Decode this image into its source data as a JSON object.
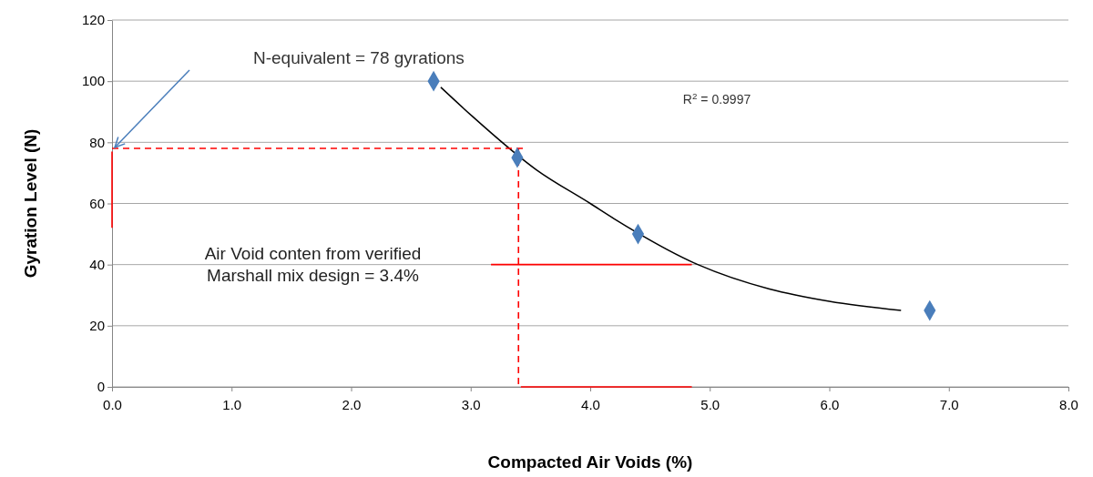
{
  "chart_data": {
    "type": "scatter",
    "xlabel": "Compacted Air Voids (%)",
    "ylabel": "Gyration Level (N)",
    "xlim": [
      0,
      8
    ],
    "xticks": [
      {
        "value": 0,
        "label": "0.0"
      },
      {
        "value": 1,
        "label": "1.0"
      },
      {
        "value": 2,
        "label": "2.0"
      },
      {
        "value": 3,
        "label": "3.0"
      },
      {
        "value": 4,
        "label": "4.0"
      },
      {
        "value": 5,
        "label": "5.0"
      },
      {
        "value": 6,
        "label": "6.0"
      },
      {
        "value": 7,
        "label": "7.0"
      },
      {
        "value": 8,
        "label": "8.0"
      }
    ],
    "ylim": [
      0,
      120
    ],
    "yticks": [
      0,
      20,
      40,
      60,
      80,
      100,
      120
    ],
    "grid": "y",
    "series": [
      {
        "color": "#4a7ebb",
        "marker": "diamond",
        "x": [
          2.69,
          3.39,
          4.4,
          6.84
        ],
        "values": [
          100,
          75,
          50,
          25
        ]
      },
      {
        "type": "line",
        "color": "#000000",
        "marker": "none",
        "line_style": "solid",
        "x": [
          2.75,
          3.0,
          3.55,
          4.0,
          4.2,
          4.9,
          5.5,
          6.0,
          6.6
        ],
        "values": [
          98,
          89,
          71,
          60,
          55,
          40,
          32,
          28,
          25
        ]
      },
      {
        "type": "line",
        "color": "#ff0000",
        "marker": "none",
        "line_style": "dashed",
        "x": [
          0,
          3.45
        ],
        "values": [
          78,
          78
        ]
      },
      {
        "type": "line",
        "color": "#ff0000",
        "marker": "none",
        "line_style": "dashed",
        "x": [
          3.4,
          3.4
        ],
        "values": [
          78,
          0
        ]
      },
      {
        "type": "line",
        "color": "#ff0000",
        "marker": "none",
        "line_style": "solid",
        "x": [
          0,
          0
        ],
        "values": [
          52,
          77
        ]
      },
      {
        "type": "line",
        "color": "#ff0000",
        "marker": "none",
        "line_style": "solid",
        "x": [
          3.17,
          4.85
        ],
        "values": [
          40,
          40
        ]
      },
      {
        "type": "line",
        "color": "#ff0000",
        "marker": "none",
        "line_style": "solid",
        "x": [
          3.42,
          4.85
        ],
        "values": [
          0,
          0
        ]
      }
    ],
    "annotations": [
      "N-equivalent = 78 gyrations",
      "R$^{2}$ = 0.9997",
      "Air Void conten from verified\nMarshall mix design = 3.4%"
    ]
  }
}
